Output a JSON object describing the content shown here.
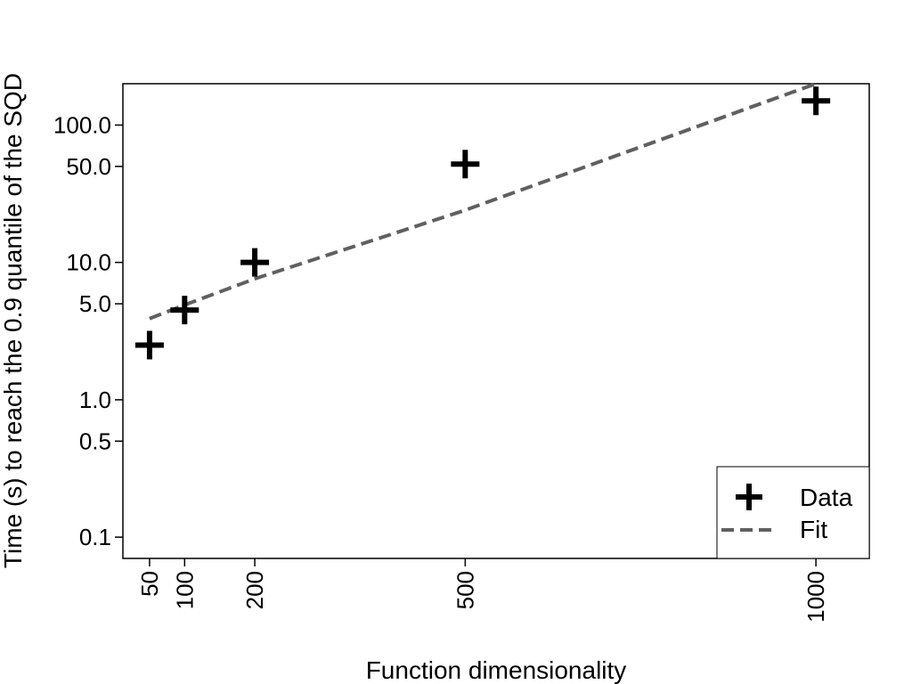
{
  "chart_data": {
    "type": "scatter",
    "title": "",
    "xlabel": "Function dimensionality",
    "ylabel": "Time (s) to reach the 0.9 quantile of the SQD",
    "x_scale": "linear",
    "y_scale": "log",
    "xlim": [
      12,
      1076
    ],
    "ylim": [
      0.07,
      200
    ],
    "x_ticks": [
      50,
      100,
      200,
      500,
      1000
    ],
    "x_tick_labels": [
      "50",
      "100",
      "200",
      "500",
      "1000"
    ],
    "y_ticks": [
      0.1,
      0.5,
      1.0,
      5.0,
      10.0,
      50.0,
      100.0
    ],
    "y_tick_labels": [
      "0.1",
      "0.5",
      "1.0",
      "5.0",
      "10.0",
      "50.0",
      "100.0"
    ],
    "grid": false,
    "legend_position": "bottom-right",
    "series": [
      {
        "name": "Data",
        "marker": "plus",
        "color": "#000000",
        "x": [
          50,
          100,
          200,
          500,
          1000
        ],
        "y": [
          2.5,
          4.5,
          10.0,
          52.0,
          150.0
        ]
      },
      {
        "name": "Fit",
        "line_style": "dashed",
        "color": "#606060",
        "x": [
          50,
          100,
          200,
          500,
          1000
        ],
        "y": [
          3.9,
          4.9,
          7.6,
          24.0,
          200.0
        ]
      }
    ]
  }
}
